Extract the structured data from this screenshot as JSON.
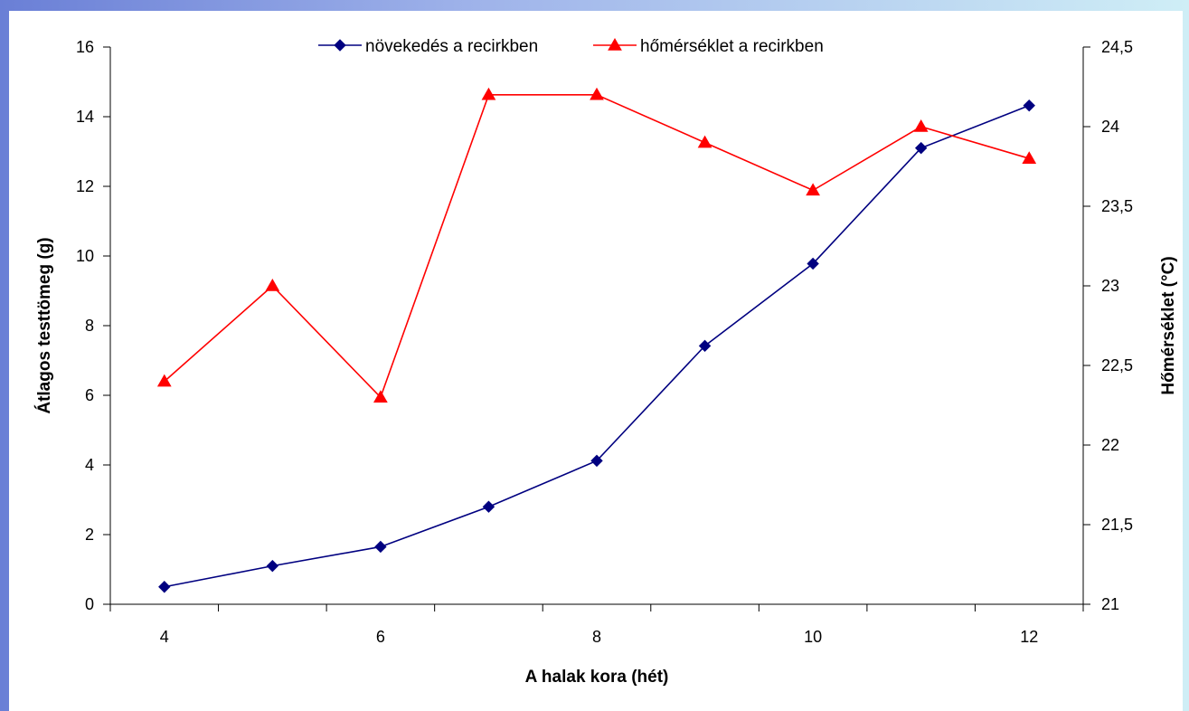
{
  "chart_data": {
    "type": "line",
    "xlabel": "A halak kora (hét)",
    "ylabel": "Átlagos testtömeg (g)",
    "y2label": "Hőmérséklet (°C)",
    "x": [
      4,
      5,
      6,
      7,
      8,
      9,
      10,
      11,
      12
    ],
    "xlim": [
      3.5,
      12.5
    ],
    "x_ticks": [
      "4",
      "6",
      "8",
      "10",
      "12"
    ],
    "ylim": [
      0,
      16
    ],
    "y_ticks": [
      "0",
      "2",
      "4",
      "6",
      "8",
      "10",
      "12",
      "14",
      "16"
    ],
    "y2lim": [
      21,
      24.5
    ],
    "y2_ticks": [
      "21",
      "21,5",
      "22",
      "22,5",
      "23",
      "23,5",
      "24",
      "24,5"
    ],
    "legend_position": "top-center",
    "grid": false,
    "series": [
      {
        "name": "növekedés a recirkben",
        "axis": "left",
        "color": "#000080",
        "marker": "diamond",
        "values": [
          0.5,
          1.1,
          1.65,
          2.8,
          4.12,
          7.42,
          9.78,
          13.1,
          14.32
        ]
      },
      {
        "name": "hőmérséklet a recirkben",
        "axis": "right",
        "color": "#ff0000",
        "marker": "triangle",
        "values": [
          22.4,
          23.0,
          22.3,
          24.2,
          24.2,
          23.9,
          23.6,
          24.0,
          23.8
        ]
      }
    ]
  }
}
